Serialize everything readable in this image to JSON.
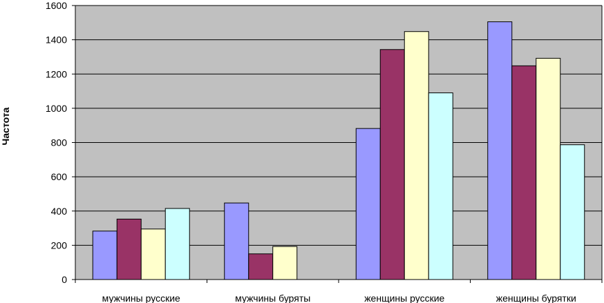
{
  "chart_data": {
    "type": "bar",
    "title": "",
    "xlabel": "",
    "ylabel": "Частота",
    "ylim": [
      0,
      1600
    ],
    "yticks": [
      0,
      200,
      400,
      600,
      800,
      1000,
      1200,
      1400,
      1600
    ],
    "grid": true,
    "legend": "none",
    "categories": [
      "мужчины русские",
      "мужчины буряты",
      "женщины русские",
      "женщины бурятки"
    ],
    "series": [
      {
        "values": [
          283,
          447,
          882,
          1505
        ],
        "color": "#9999ff"
      },
      {
        "values": [
          353,
          150,
          1343,
          1248
        ],
        "color": "#993366"
      },
      {
        "values": [
          295,
          193,
          1448,
          1292
        ],
        "color": "#ffffcc"
      },
      {
        "values": [
          415,
          null,
          1090,
          787
        ],
        "color": "#ccffff"
      }
    ],
    "plot_background": "#c0c0c0",
    "gridline_color": "#000000"
  }
}
